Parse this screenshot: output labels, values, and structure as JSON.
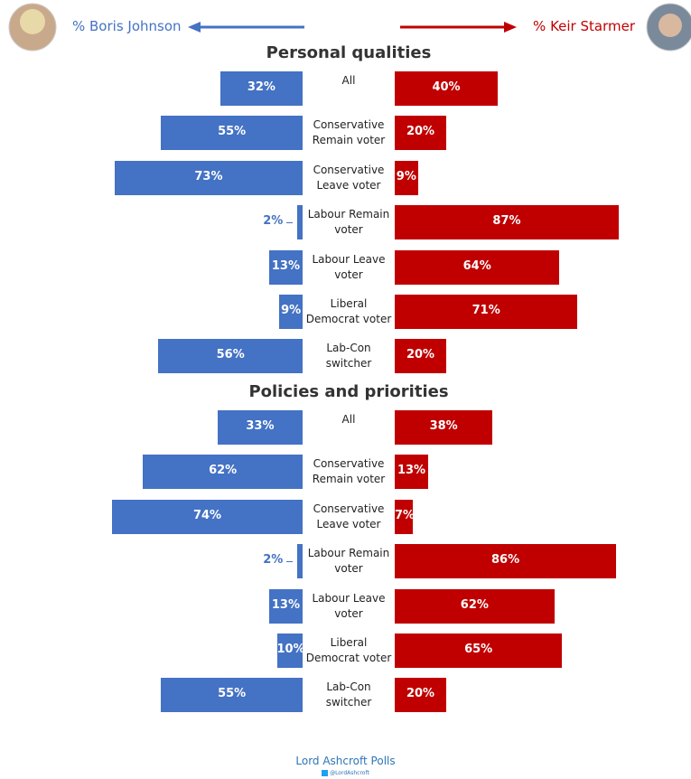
{
  "chart_data": [
    {
      "type": "bar",
      "title": "Personal qualities",
      "categories": [
        "All",
        "Conservative\nRemain voter",
        "Conservative\nLeave voter",
        "Labour Remain\nvoter",
        "Labour Leave\nvoter",
        "Liberal\nDemocrat voter",
        "Lab-Con\nswitcher"
      ],
      "series": [
        {
          "name": "% Boris Johnson",
          "color": "#4472c4",
          "values": [
            32,
            55,
            73,
            2,
            13,
            9,
            56
          ],
          "value_labels": [
            "32%",
            "55%",
            "73%",
            "2%",
            "13%",
            "9%",
            "56%"
          ]
        },
        {
          "name": "% Keir Starmer",
          "color": "#c00000",
          "values": [
            40,
            20,
            9,
            87,
            64,
            71,
            20
          ],
          "value_labels": [
            "40%",
            "20%",
            "9%",
            "87%",
            "64%",
            "71%",
            "20%"
          ]
        }
      ]
    },
    {
      "type": "bar",
      "title": "Policies and priorities",
      "categories": [
        "All",
        "Conservative\nRemain voter",
        "Conservative\nLeave voter",
        "Labour Remain\nvoter",
        "Labour Leave\nvoter",
        "Liberal\nDemocrat voter",
        "Lab-Con\nswitcher"
      ],
      "series": [
        {
          "color": "#4472c4",
          "values": [
            33,
            62,
            74,
            2,
            13,
            10,
            55
          ],
          "value_labels": [
            "33%",
            "62%",
            "74%",
            "2%",
            "13%",
            "10%",
            "55%"
          ]
        },
        {
          "color": "#c00000",
          "values": [
            38,
            13,
            7,
            86,
            62,
            65,
            20
          ],
          "value_labels": [
            "38%",
            "13%",
            "7%",
            "86%",
            "62%",
            "65%",
            "20%"
          ]
        }
      ]
    }
  ],
  "footer": {
    "source": "Lord Ashcroft Polls",
    "handle": "@LordAshcroft"
  }
}
